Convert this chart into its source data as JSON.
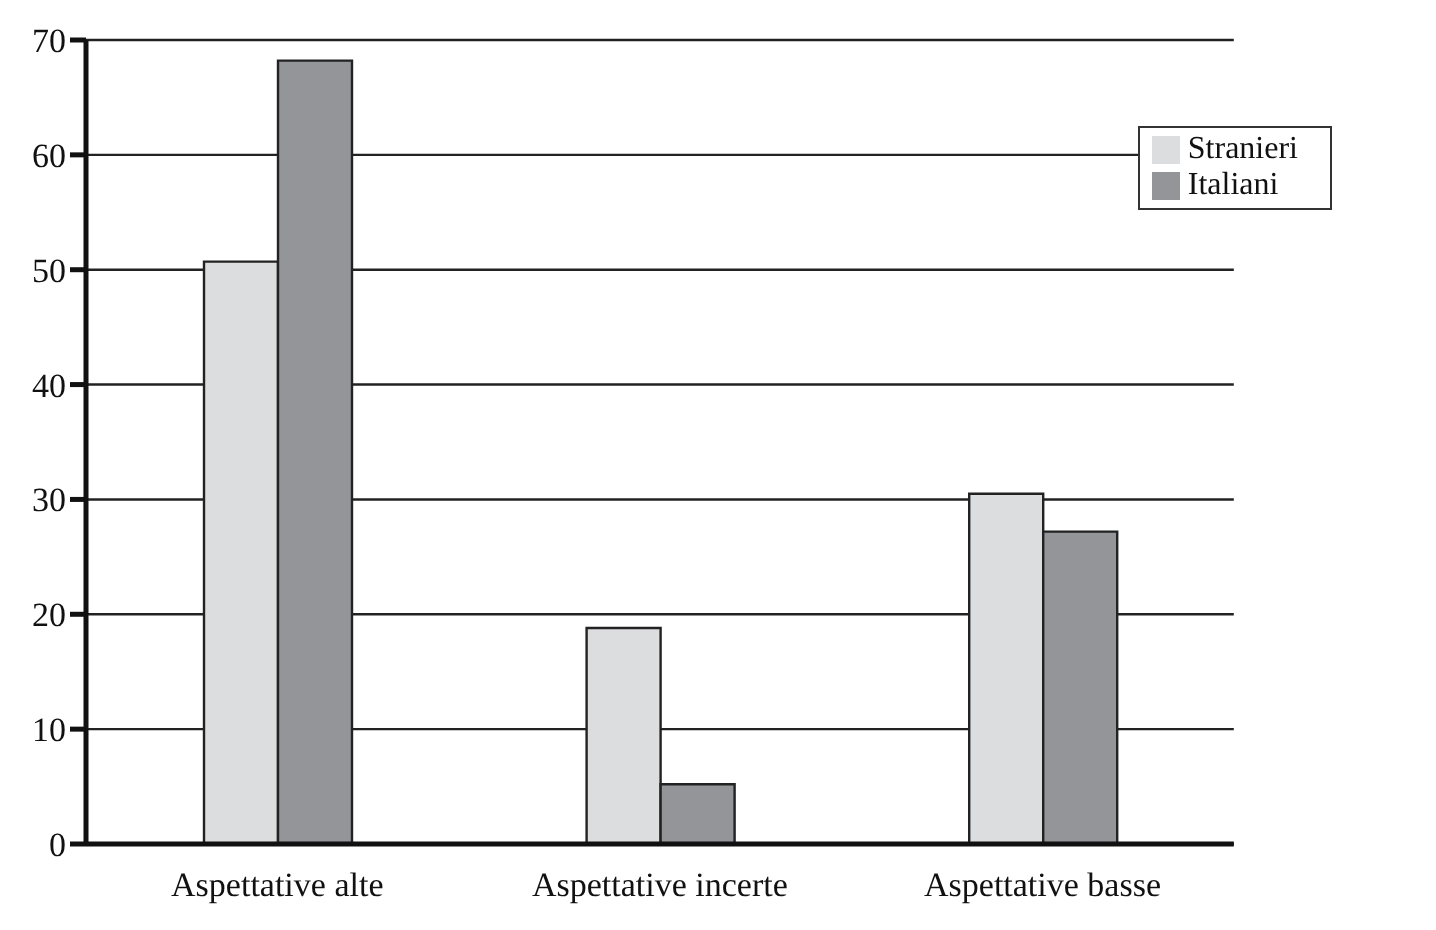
{
  "chart_data": {
    "type": "bar",
    "categories": [
      "Aspettative alte",
      "Aspettative incerte",
      "Aspettative basse"
    ],
    "series": [
      {
        "name": "Stranieri",
        "color": "#dcdddf",
        "values": [
          50.7,
          18.8,
          30.5
        ]
      },
      {
        "name": "Italiani",
        "color": "#939598",
        "values": [
          68.2,
          5.2,
          27.2
        ]
      }
    ],
    "ylim": [
      0,
      70
    ],
    "yticks": [
      0,
      10,
      20,
      30,
      40,
      50,
      60,
      70
    ],
    "grid": "y",
    "legend": "top right"
  }
}
